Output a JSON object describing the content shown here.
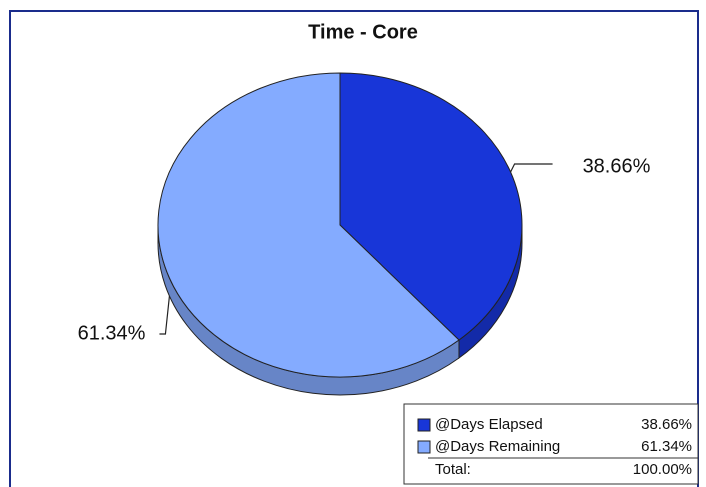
{
  "chart_data": {
    "type": "pie3d",
    "title": "Time - Core",
    "categories": [
      "@Days Elapsed",
      "@Days Remaining"
    ],
    "values": [
      38.66,
      61.34
    ],
    "value_labels": [
      "38.66%",
      "61.34%"
    ],
    "colors": [
      "#1836d8",
      "#84abff"
    ],
    "legend": {
      "total_label": "Total:",
      "total": "100.00%"
    }
  }
}
